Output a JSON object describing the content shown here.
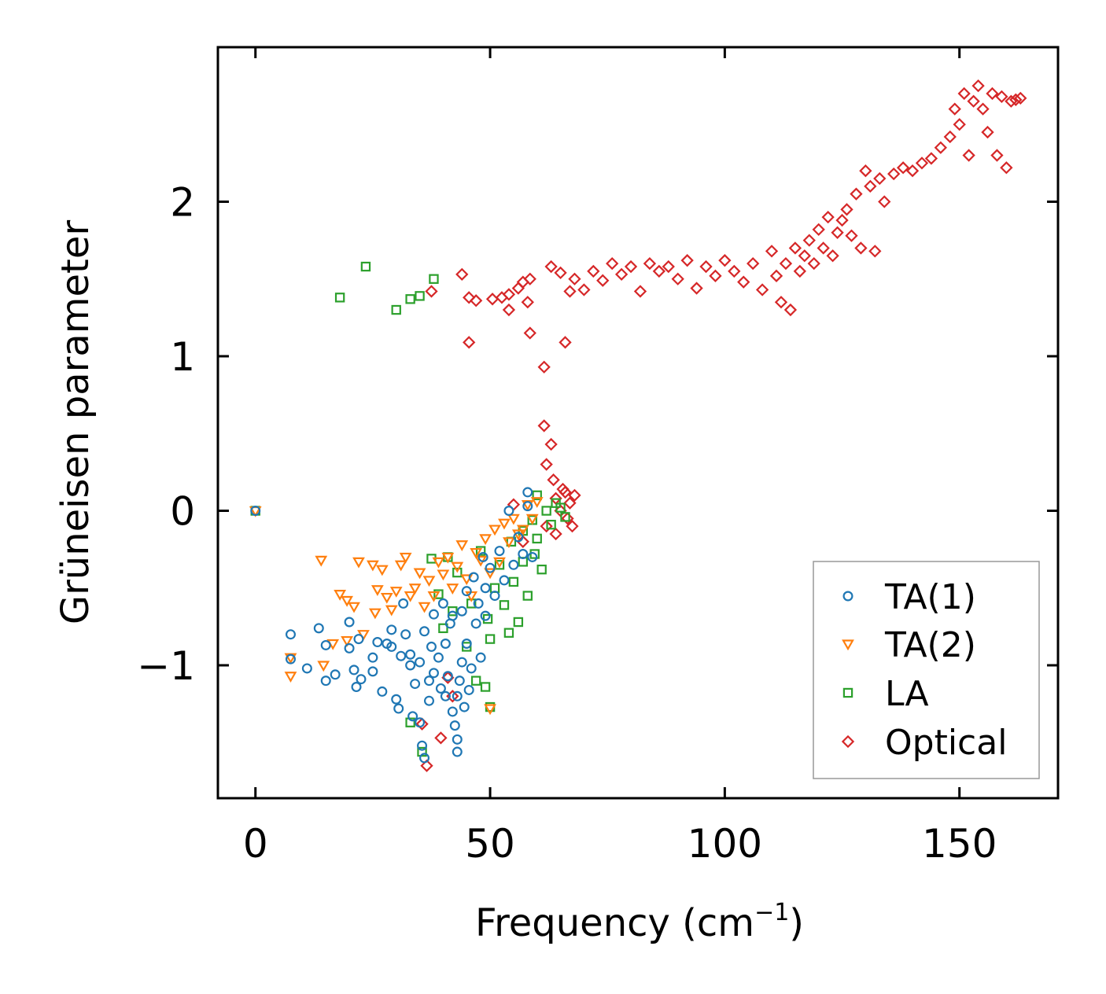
{
  "chart_data": {
    "type": "scatter",
    "title": "",
    "xlabel": "Frequency (cm",
    "xlabel_sup": "−1",
    "xlabel_tail": ")",
    "ylabel": "Grüneisen parameter",
    "xlim": [
      -8,
      171
    ],
    "ylim": [
      -1.86,
      3.0
    ],
    "xticks": [
      0,
      50,
      100,
      150
    ],
    "xtick_labels": [
      "0",
      "50",
      "100",
      "150"
    ],
    "yticks": [
      -1,
      0,
      1,
      2
    ],
    "ytick_labels": [
      "−1",
      "0",
      "1",
      "2"
    ],
    "grid": false,
    "legend_position": "bottom-right",
    "series": [
      {
        "name": "TA(1)",
        "marker": "circle",
        "color": "#1f77b4",
        "points": [
          [
            0,
            0
          ],
          [
            7.5,
            -0.8
          ],
          [
            7.5,
            -0.96
          ],
          [
            11,
            -1.02
          ],
          [
            13.5,
            -0.76
          ],
          [
            15,
            -0.87
          ],
          [
            15,
            -1.1
          ],
          [
            17,
            -1.06
          ],
          [
            20,
            -0.72
          ],
          [
            20,
            -0.89
          ],
          [
            21,
            -1.03
          ],
          [
            21.5,
            -1.14
          ],
          [
            22.5,
            -1.09
          ],
          [
            22,
            -0.83
          ],
          [
            25,
            -0.95
          ],
          [
            25,
            -1.04
          ],
          [
            26,
            -0.85
          ],
          [
            27,
            -1.17
          ],
          [
            28,
            -0.86
          ],
          [
            29,
            -0.77
          ],
          [
            29,
            -0.88
          ],
          [
            30,
            -1.22
          ],
          [
            30.5,
            -1.28
          ],
          [
            31,
            -0.94
          ],
          [
            31.5,
            -0.6
          ],
          [
            32,
            -0.8
          ],
          [
            33,
            -0.93
          ],
          [
            33,
            -1.0
          ],
          [
            33.5,
            -1.33
          ],
          [
            34,
            -1.12
          ],
          [
            35,
            -0.98
          ],
          [
            35,
            -1.37
          ],
          [
            35.5,
            -1.52
          ],
          [
            36,
            -1.6
          ],
          [
            36,
            -0.78
          ],
          [
            37,
            -1.1
          ],
          [
            37,
            -1.23
          ],
          [
            37.5,
            -0.88
          ],
          [
            38,
            -0.67
          ],
          [
            38,
            -1.05
          ],
          [
            39,
            -0.95
          ],
          [
            39.5,
            -1.15
          ],
          [
            40,
            -0.6
          ],
          [
            40.5,
            -0.86
          ],
          [
            40.5,
            -1.2
          ],
          [
            41,
            -1.07
          ],
          [
            41.5,
            -0.73
          ],
          [
            42,
            -0.68
          ],
          [
            42,
            -1.3
          ],
          [
            42.5,
            -1.39
          ],
          [
            43,
            -1.48
          ],
          [
            43,
            -1.56
          ],
          [
            43,
            -1.2
          ],
          [
            43.5,
            -1.1
          ],
          [
            44,
            -0.65
          ],
          [
            44,
            -0.98
          ],
          [
            44.5,
            -1.27
          ],
          [
            45,
            -0.52
          ],
          [
            45,
            -0.86
          ],
          [
            45.5,
            -1.16
          ],
          [
            46,
            -1.02
          ],
          [
            46.5,
            -0.43
          ],
          [
            47,
            -0.73
          ],
          [
            47.5,
            -0.6
          ],
          [
            48,
            -0.95
          ],
          [
            48.5,
            -0.3
          ],
          [
            49,
            -0.5
          ],
          [
            49,
            -0.68
          ],
          [
            50,
            -0.37
          ],
          [
            51,
            -0.55
          ],
          [
            52,
            -0.26
          ],
          [
            53,
            -0.45
          ],
          [
            54,
            0.0
          ],
          [
            55,
            -0.35
          ],
          [
            56,
            -0.17
          ],
          [
            57,
            -0.28
          ],
          [
            58,
            0.12
          ],
          [
            58,
            0.03
          ],
          [
            59,
            -0.3
          ]
        ]
      },
      {
        "name": "TA(2)",
        "marker": "triangle-down",
        "color": "#ff7f0e",
        "points": [
          [
            0,
            0
          ],
          [
            7.5,
            -1.07
          ],
          [
            7.5,
            -0.95
          ],
          [
            14,
            -0.32
          ],
          [
            14.5,
            -1.0
          ],
          [
            16.5,
            -0.86
          ],
          [
            18,
            -0.54
          ],
          [
            19.5,
            -0.58
          ],
          [
            19.5,
            -0.84
          ],
          [
            21,
            -0.62
          ],
          [
            22,
            -0.33
          ],
          [
            23,
            -0.8
          ],
          [
            25,
            -0.35
          ],
          [
            25.5,
            -0.66
          ],
          [
            26,
            -0.51
          ],
          [
            27,
            -0.38
          ],
          [
            28,
            -0.56
          ],
          [
            29,
            -0.64
          ],
          [
            30,
            -0.52
          ],
          [
            31,
            -0.35
          ],
          [
            32,
            -0.3
          ],
          [
            33,
            -0.55
          ],
          [
            34,
            -0.5
          ],
          [
            35,
            -0.4
          ],
          [
            36,
            -0.62
          ],
          [
            37,
            -0.45
          ],
          [
            38,
            -0.55
          ],
          [
            39,
            -0.33
          ],
          [
            40,
            -0.41
          ],
          [
            41,
            -0.3
          ],
          [
            42,
            -0.5
          ],
          [
            43,
            -0.36
          ],
          [
            44,
            -0.22
          ],
          [
            45,
            -0.44
          ],
          [
            46,
            -0.55
          ],
          [
            47,
            -0.27
          ],
          [
            48,
            -0.32
          ],
          [
            49,
            -0.18
          ],
          [
            50,
            -1.28
          ],
          [
            50,
            -0.4
          ],
          [
            51,
            -0.12
          ],
          [
            52,
            -0.33
          ],
          [
            53,
            -0.08
          ],
          [
            54,
            -0.2
          ],
          [
            55,
            -0.05
          ],
          [
            56,
            -0.15
          ],
          [
            57,
            -0.12
          ],
          [
            58,
            0.04
          ],
          [
            59,
            -0.05
          ],
          [
            60,
            0.06
          ]
        ]
      },
      {
        "name": "LA",
        "marker": "square",
        "color": "#2ca02c",
        "points": [
          [
            0,
            0
          ],
          [
            18,
            1.38
          ],
          [
            23.5,
            1.58
          ],
          [
            30,
            1.3
          ],
          [
            33,
            1.37
          ],
          [
            35,
            1.39
          ],
          [
            38,
            1.5
          ],
          [
            33,
            -1.37
          ],
          [
            35.5,
            -1.56
          ],
          [
            37.5,
            -0.31
          ],
          [
            39,
            -0.54
          ],
          [
            40,
            -0.76
          ],
          [
            41,
            -0.3
          ],
          [
            42,
            -0.65
          ],
          [
            43,
            -0.4
          ],
          [
            45,
            -0.88
          ],
          [
            46,
            -0.6
          ],
          [
            47,
            -1.1
          ],
          [
            48,
            -0.26
          ],
          [
            49,
            -1.14
          ],
          [
            49.5,
            -0.7
          ],
          [
            50,
            -1.27
          ],
          [
            50,
            -0.83
          ],
          [
            51,
            -0.5
          ],
          [
            52,
            -0.35
          ],
          [
            53,
            -0.61
          ],
          [
            54,
            -0.79
          ],
          [
            54.5,
            -0.2
          ],
          [
            55,
            -0.46
          ],
          [
            56,
            -0.72
          ],
          [
            57,
            -0.13
          ],
          [
            57,
            -0.33
          ],
          [
            58,
            -0.55
          ],
          [
            59,
            -0.06
          ],
          [
            59.5,
            -0.28
          ],
          [
            60,
            0.1
          ],
          [
            60,
            -0.18
          ],
          [
            61,
            -0.38
          ],
          [
            62,
            0.0
          ],
          [
            63,
            -0.09
          ],
          [
            64,
            0.05
          ],
          [
            65,
            0.02
          ],
          [
            66,
            -0.04
          ]
        ]
      },
      {
        "name": "Optical",
        "marker": "diamond",
        "color": "#d62728",
        "points": [
          [
            35.5,
            -1.38
          ],
          [
            36.5,
            -1.65
          ],
          [
            39.5,
            -1.47
          ],
          [
            41,
            -1.08
          ],
          [
            42,
            -1.2
          ],
          [
            37.5,
            1.42
          ],
          [
            44,
            1.53
          ],
          [
            45.5,
            1.09
          ],
          [
            45.5,
            1.38
          ],
          [
            47,
            1.36
          ],
          [
            50.5,
            1.37
          ],
          [
            52.5,
            1.38
          ],
          [
            54,
            1.3
          ],
          [
            54,
            1.4
          ],
          [
            56,
            1.44
          ],
          [
            57,
            1.48
          ],
          [
            58,
            1.35
          ],
          [
            58.5,
            1.5
          ],
          [
            58.5,
            1.15
          ],
          [
            61.5,
            0.93
          ],
          [
            63,
            1.58
          ],
          [
            65,
            1.54
          ],
          [
            66,
            1.09
          ],
          [
            67,
            1.42
          ],
          [
            68,
            1.5
          ],
          [
            70,
            1.43
          ],
          [
            72,
            1.55
          ],
          [
            74,
            1.49
          ],
          [
            76,
            1.6
          ],
          [
            78,
            1.53
          ],
          [
            80,
            1.58
          ],
          [
            82,
            1.42
          ],
          [
            84,
            1.6
          ],
          [
            86,
            1.55
          ],
          [
            88,
            1.58
          ],
          [
            90,
            1.5
          ],
          [
            92,
            1.62
          ],
          [
            94,
            1.44
          ],
          [
            96,
            1.58
          ],
          [
            98,
            1.52
          ],
          [
            100,
            1.62
          ],
          [
            102,
            1.55
          ],
          [
            104,
            1.48
          ],
          [
            106,
            1.6
          ],
          [
            108,
            1.43
          ],
          [
            110,
            1.68
          ],
          [
            111,
            1.52
          ],
          [
            112,
            1.35
          ],
          [
            113,
            1.6
          ],
          [
            114,
            1.3
          ],
          [
            115,
            1.7
          ],
          [
            116,
            1.55
          ],
          [
            117,
            1.65
          ],
          [
            118,
            1.75
          ],
          [
            119,
            1.6
          ],
          [
            120,
            1.82
          ],
          [
            121,
            1.7
          ],
          [
            122,
            1.9
          ],
          [
            123,
            1.65
          ],
          [
            124,
            1.8
          ],
          [
            125,
            1.88
          ],
          [
            126,
            1.95
          ],
          [
            127,
            1.78
          ],
          [
            128,
            2.05
          ],
          [
            129,
            1.7
          ],
          [
            130,
            2.2
          ],
          [
            131,
            2.1
          ],
          [
            132,
            1.68
          ],
          [
            133,
            2.15
          ],
          [
            134,
            2.0
          ],
          [
            136,
            2.18
          ],
          [
            138,
            2.22
          ],
          [
            140,
            2.2
          ],
          [
            142,
            2.25
          ],
          [
            144,
            2.28
          ],
          [
            146,
            2.35
          ],
          [
            148,
            2.42
          ],
          [
            149,
            2.6
          ],
          [
            150,
            2.5
          ],
          [
            151,
            2.7
          ],
          [
            152,
            2.3
          ],
          [
            153,
            2.65
          ],
          [
            154,
            2.75
          ],
          [
            155,
            2.6
          ],
          [
            156,
            2.45
          ],
          [
            157,
            2.7
          ],
          [
            158,
            2.3
          ],
          [
            159,
            2.68
          ],
          [
            160,
            2.22
          ],
          [
            161,
            2.65
          ],
          [
            162,
            2.66
          ],
          [
            163,
            2.67
          ],
          [
            61.5,
            0.55
          ],
          [
            63,
            0.43
          ],
          [
            62,
            0.3
          ],
          [
            63.5,
            0.2
          ],
          [
            64,
            0.08
          ],
          [
            65,
            0.0
          ],
          [
            66,
            0.12
          ],
          [
            67,
            0.05
          ],
          [
            68,
            0.1
          ],
          [
            66.5,
            -0.05
          ],
          [
            67.5,
            -0.1
          ],
          [
            65.5,
            0.14
          ],
          [
            55,
            0.04
          ],
          [
            57,
            -0.2
          ],
          [
            62,
            -0.1
          ],
          [
            64,
            -0.15
          ]
        ]
      }
    ]
  }
}
